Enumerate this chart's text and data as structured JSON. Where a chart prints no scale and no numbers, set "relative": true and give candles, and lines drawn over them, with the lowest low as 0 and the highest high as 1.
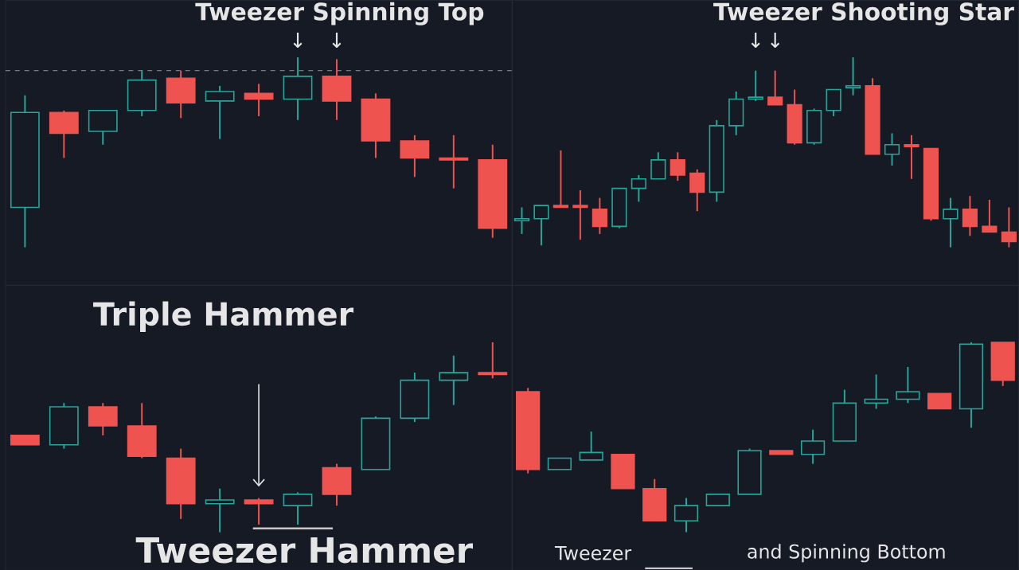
{
  "chart_data": [
    {
      "type": "candlestick",
      "relative": true,
      "title": "Tweezer Spinning Top",
      "annotations": [
        "↓",
        "↓"
      ],
      "categories": [
        null,
        null,
        null,
        null,
        null,
        null,
        null,
        null,
        null,
        null,
        null,
        null,
        null
      ],
      "ohlc": [
        [
          0.21,
          0.8,
          0,
          0.71
        ],
        [
          0.71,
          0.72,
          0.47,
          0.6
        ],
        [
          0.61,
          0.72,
          0.54,
          0.72
        ],
        [
          0.72,
          0.93,
          0.69,
          0.88
        ],
        [
          0.89,
          0.93,
          0.68,
          0.76
        ],
        [
          0.77,
          0.85,
          0.57,
          0.82
        ],
        [
          0.81,
          0.86,
          0.69,
          0.78
        ],
        [
          0.78,
          1.0,
          0.67,
          0.9
        ],
        [
          0.9,
          0.99,
          0.67,
          0.77
        ],
        [
          0.78,
          0.81,
          0.47,
          0.56
        ],
        [
          0.56,
          0.59,
          0.37,
          0.47
        ],
        [
          0.47,
          0.59,
          0.31,
          0.46
        ],
        [
          0.46,
          0.54,
          0.05,
          0.1
        ]
      ],
      "colors": [
        "#26a69a",
        "#ef5350",
        "#26a69a",
        "#26a69a",
        "#ef5350",
        "#26a69a",
        "#ef5350",
        "#26a69a",
        "#ef5350",
        "#ef5350",
        "#ef5350",
        "#ef5350",
        "#ef5350"
      ],
      "ref_lines": [
        {
          "axis": "y",
          "value": 0.93,
          "color": "#787b86",
          "line_style": "dashed"
        }
      ]
    },
    {
      "type": "candlestick",
      "relative": true,
      "title": "Tweezer Shooting Star",
      "annotations": [
        "↓",
        "↓"
      ],
      "categories": [
        null,
        null,
        null,
        null,
        null,
        null,
        null,
        null,
        null,
        null,
        null,
        null,
        null,
        null,
        null,
        null,
        null,
        null,
        null,
        null,
        null,
        null,
        null,
        null,
        null,
        null
      ],
      "ohlc": [
        [
          0.14,
          0.21,
          0.07,
          0.15
        ],
        [
          0.15,
          0.22,
          0.01,
          0.22
        ],
        [
          0.22,
          0.51,
          0.21,
          0.21
        ],
        [
          0.22,
          0.3,
          0.04,
          0.21
        ],
        [
          0.2,
          0.26,
          0.07,
          0.11
        ],
        [
          0.11,
          0.31,
          0.1,
          0.31
        ],
        [
          0.31,
          0.38,
          0.24,
          0.36
        ],
        [
          0.36,
          0.5,
          0.36,
          0.46
        ],
        [
          0.46,
          0.5,
          0.35,
          0.38
        ],
        [
          0.39,
          0.41,
          0.19,
          0.29
        ],
        [
          0.29,
          0.67,
          0.24,
          0.64
        ],
        [
          0.64,
          0.82,
          0.59,
          0.78
        ],
        [
          0.78,
          0.93,
          0.77,
          0.79
        ],
        [
          0.79,
          0.93,
          0.75,
          0.75
        ],
        [
          0.75,
          0.83,
          0.54,
          0.55
        ],
        [
          0.55,
          0.73,
          0.54,
          0.72
        ],
        [
          0.72,
          0.83,
          0.69,
          0.83
        ],
        [
          0.84,
          1.0,
          0.8,
          0.85
        ],
        [
          0.85,
          0.89,
          0.49,
          0.49
        ],
        [
          0.49,
          0.6,
          0.43,
          0.54
        ],
        [
          0.54,
          0.59,
          0.36,
          0.53
        ],
        [
          0.52,
          0.52,
          0.14,
          0.15
        ],
        [
          0.15,
          0.26,
          0,
          0.2
        ],
        [
          0.2,
          0.27,
          0.06,
          0.11
        ],
        [
          0.11,
          0.25,
          0.08,
          0.08
        ],
        [
          0.08,
          0.21,
          0,
          0.03
        ]
      ],
      "colors": [
        "#26a69a",
        "#26a69a",
        "#ef5350",
        "#ef5350",
        "#ef5350",
        "#26a69a",
        "#26a69a",
        "#26a69a",
        "#ef5350",
        "#ef5350",
        "#26a69a",
        "#26a69a",
        "#26a69a",
        "#ef5350",
        "#ef5350",
        "#26a69a",
        "#26a69a",
        "#26a69a",
        "#ef5350",
        "#26a69a",
        "#ef5350",
        "#ef5350",
        "#26a69a",
        "#ef5350",
        "#ef5350",
        "#ef5350"
      ]
    },
    {
      "type": "candlestick",
      "relative": true,
      "annotations": [
        "Triple Hammer",
        "Tweezer Hammer"
      ],
      "categories": [
        null,
        null,
        null,
        null,
        null,
        null,
        null,
        null,
        null,
        null,
        null,
        null,
        null
      ],
      "ohlc": [
        [
          0.51,
          0.51,
          0.46,
          0.46
        ],
        [
          0.46,
          0.68,
          0.44,
          0.66
        ],
        [
          0.66,
          0.68,
          0.51,
          0.56
        ],
        [
          0.56,
          0.68,
          0.39,
          0.4
        ],
        [
          0.39,
          0.44,
          0.07,
          0.15
        ],
        [
          0.15,
          0.23,
          0,
          0.17
        ],
        [
          0.17,
          0.18,
          0.04,
          0.15
        ],
        [
          0.14,
          0.21,
          0.04,
          0.2
        ],
        [
          0.34,
          0.36,
          0.14,
          0.2
        ],
        [
          0.33,
          0.61,
          0.33,
          0.6
        ],
        [
          0.6,
          0.84,
          0.58,
          0.8
        ],
        [
          0.8,
          0.93,
          0.67,
          0.84
        ],
        [
          0.84,
          1.0,
          0.81,
          0.83
        ]
      ],
      "colors": [
        "#ef5350",
        "#26a69a",
        "#ef5350",
        "#ef5350",
        "#ef5350",
        "#26a69a",
        "#ef5350",
        "#26a69a",
        "#ef5350",
        "#26a69a",
        "#26a69a",
        "#26a69a",
        "#ef5350"
      ]
    },
    {
      "type": "candlestick",
      "relative": true,
      "annotations": [
        "Tweezer",
        "and Spinning Bottom"
      ],
      "categories": [
        null,
        null,
        null,
        null,
        null,
        null,
        null,
        null,
        null,
        null,
        null,
        null,
        null,
        null,
        null,
        null
      ],
      "ohlc": [
        [
          0.74,
          0.76,
          0.31,
          0.33
        ],
        [
          0.33,
          0.39,
          0.33,
          0.39
        ],
        [
          0.38,
          0.53,
          0.38,
          0.42
        ],
        [
          0.41,
          0.41,
          0.23,
          0.23
        ],
        [
          0.23,
          0.28,
          0.06,
          0.06
        ],
        [
          0.06,
          0.18,
          0,
          0.14
        ],
        [
          0.14,
          0.2,
          0.14,
          0.2
        ],
        [
          0.2,
          0.44,
          0.2,
          0.43
        ],
        [
          0.43,
          0.43,
          0.41,
          0.41
        ],
        [
          0.41,
          0.54,
          0.36,
          0.48
        ],
        [
          0.48,
          0.75,
          0.48,
          0.68
        ],
        [
          0.68,
          0.83,
          0.65,
          0.7
        ],
        [
          0.7,
          0.87,
          0.68,
          0.74
        ],
        [
          0.73,
          0.73,
          0.65,
          0.65
        ],
        [
          0.65,
          1.0,
          0.55,
          0.99
        ],
        [
          1.0,
          1.0,
          0.77,
          0.8
        ]
      ],
      "colors": [
        "#ef5350",
        "#26a69a",
        "#26a69a",
        "#ef5350",
        "#ef5350",
        "#26a69a",
        "#26a69a",
        "#26a69a",
        "#ef5350",
        "#26a69a",
        "#26a69a",
        "#26a69a",
        "#26a69a",
        "#ef5350",
        "#26a69a",
        "#ef5350"
      ]
    }
  ]
}
